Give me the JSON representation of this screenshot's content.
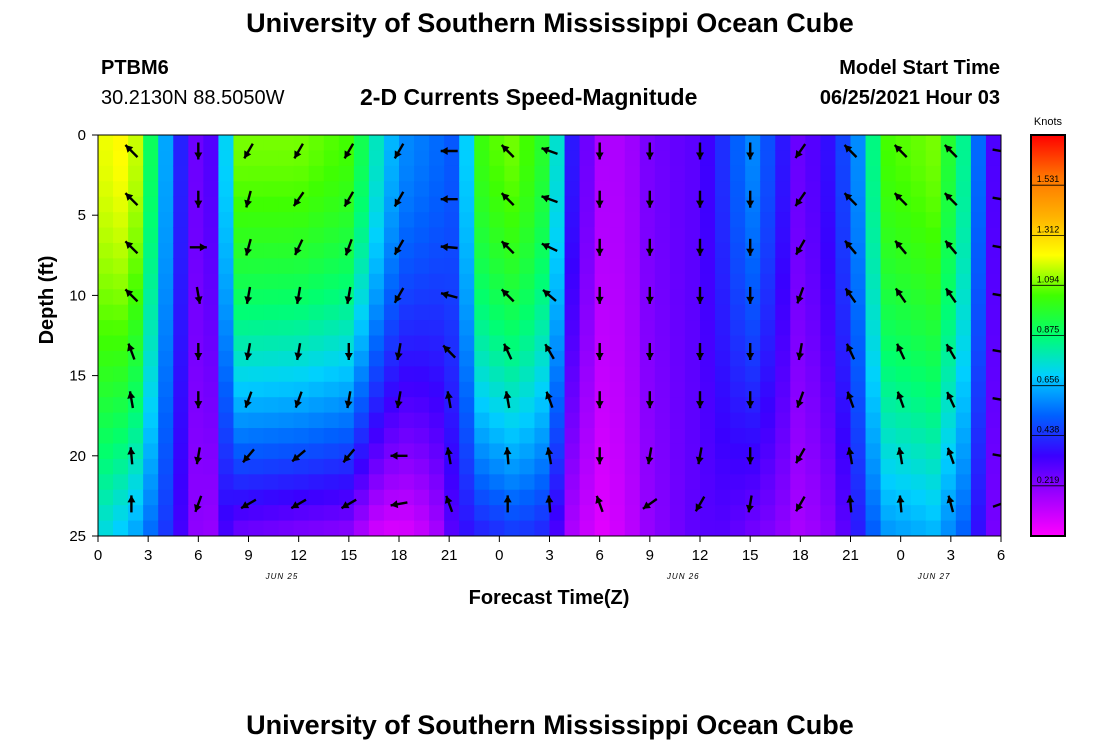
{
  "header": {
    "title": "University of Southern Mississippi Ocean Cube",
    "station_id": "PTBM6",
    "station_coords": "30.2130N  88.5050W",
    "chart_title": "2-D Currents Speed-Magnitude",
    "model_start_label": "Model Start Time",
    "model_start_value": "06/25/2021 Hour 03"
  },
  "footer": {
    "title": "University of Southern Mississippi Ocean Cube"
  },
  "chart_data": {
    "type": "heatmap",
    "title": "2-D Currents Speed-Magnitude",
    "xlabel": "Forecast Time(Z)",
    "ylabel": "Depth (ft)",
    "x_ticks": [
      "0",
      "3",
      "6",
      "9",
      "12",
      "15",
      "18",
      "21",
      "0",
      "3",
      "6",
      "9",
      "12",
      "15",
      "18",
      "21",
      "0",
      "3",
      "6"
    ],
    "x_tick_hours": [
      0,
      3,
      6,
      9,
      12,
      15,
      18,
      21,
      24,
      27,
      30,
      33,
      36,
      39,
      42,
      45,
      48,
      51,
      54
    ],
    "date_labels": [
      {
        "text": "JUN 25",
        "hour": 11
      },
      {
        "text": "JUN 26",
        "hour": 35
      },
      {
        "text": "JUN 27",
        "hour": 50
      }
    ],
    "y_ticks": [
      0,
      5,
      10,
      15,
      20,
      25
    ],
    "xlim": [
      0,
      54
    ],
    "ylim": [
      0,
      25
    ],
    "colorbar": {
      "unit": "Knots",
      "ticks": [
        "1.531",
        "1.312",
        "1.094",
        "0.875",
        "0.656",
        "0.438",
        "0.219"
      ],
      "tick_values": [
        1.531,
        1.312,
        1.094,
        0.875,
        0.656,
        0.438,
        0.219
      ],
      "range": [
        0,
        1.75
      ],
      "colors": [
        "#ff00ff",
        "#a000ff",
        "#3a00ff",
        "#0060ff",
        "#00d0ff",
        "#00ff70",
        "#40ff00",
        "#ffff00",
        "#ffb000",
        "#ff7000",
        "#ff0000"
      ]
    },
    "speed_profiles": [
      {
        "hour": 0,
        "surface": 1.2,
        "bottom": 0.75
      },
      {
        "hour": 2,
        "surface": 1.25,
        "bottom": 0.65
      },
      {
        "hour": 3.5,
        "surface": 0.8,
        "bottom": 0.5
      },
      {
        "hour": 4.5,
        "surface": 0.5,
        "bottom": 0.4
      },
      {
        "hour": 5.5,
        "surface": 0.3,
        "bottom": 0.25
      },
      {
        "hour": 6.5,
        "surface": 0.2,
        "bottom": 0.12
      },
      {
        "hour": 7.3,
        "surface": 0.55,
        "bottom": 0.35
      },
      {
        "hour": 8.5,
        "surface": 1.1,
        "bottom": 0.25
      },
      {
        "hour": 12,
        "surface": 1.1,
        "bottom": 0.22
      },
      {
        "hour": 15,
        "surface": 1.05,
        "bottom": 0.2
      },
      {
        "hour": 16.5,
        "surface": 0.8,
        "bottom": 0.08
      },
      {
        "hour": 18,
        "surface": 0.6,
        "bottom": 0.05
      },
      {
        "hour": 20,
        "surface": 0.55,
        "bottom": 0.12
      },
      {
        "hour": 21.5,
        "surface": 0.5,
        "bottom": 0.35
      },
      {
        "hour": 23,
        "surface": 1.05,
        "bottom": 0.4
      },
      {
        "hour": 25,
        "surface": 1.1,
        "bottom": 0.45
      },
      {
        "hour": 27,
        "surface": 0.95,
        "bottom": 0.4
      },
      {
        "hour": 28.3,
        "surface": 0.4,
        "bottom": 0.15
      },
      {
        "hour": 30,
        "surface": 0.15,
        "bottom": 0.05
      },
      {
        "hour": 31.5,
        "surface": 0.15,
        "bottom": 0.1
      },
      {
        "hour": 33,
        "surface": 0.25,
        "bottom": 0.2
      },
      {
        "hour": 36,
        "surface": 0.3,
        "bottom": 0.3
      },
      {
        "hour": 37.5,
        "surface": 0.45,
        "bottom": 0.3
      },
      {
        "hour": 39,
        "surface": 0.6,
        "bottom": 0.25
      },
      {
        "hour": 40.5,
        "surface": 0.45,
        "bottom": 0.22
      },
      {
        "hour": 42,
        "surface": 0.25,
        "bottom": 0.15
      },
      {
        "hour": 44,
        "surface": 0.4,
        "bottom": 0.22
      },
      {
        "hour": 45.5,
        "surface": 0.6,
        "bottom": 0.4
      },
      {
        "hour": 47,
        "surface": 1.05,
        "bottom": 0.6
      },
      {
        "hour": 50,
        "surface": 1.1,
        "bottom": 0.65
      },
      {
        "hour": 52,
        "surface": 0.8,
        "bottom": 0.5
      },
      {
        "hour": 53,
        "surface": 0.4,
        "bottom": 0.3
      },
      {
        "hour": 54,
        "surface": 0.25,
        "bottom": 0.2
      }
    ],
    "vectors": {
      "depths": [
        1,
        4,
        7,
        10,
        13.5,
        16.5,
        20,
        23
      ],
      "columns": [
        {
          "hour": 2,
          "angles": [
            135,
            135,
            135,
            135,
            110,
            100,
            95,
            90
          ]
        },
        {
          "hour": 6,
          "angles": [
            -90,
            -90,
            0,
            -80,
            -90,
            -90,
            -100,
            -110
          ]
        },
        {
          "hour": 9,
          "angles": [
            -120,
            -105,
            -105,
            -100,
            -100,
            -110,
            -130,
            -150
          ]
        },
        {
          "hour": 12,
          "angles": [
            -120,
            -125,
            -115,
            -100,
            -100,
            -110,
            -140,
            -150
          ]
        },
        {
          "hour": 15,
          "angles": [
            -120,
            -120,
            -110,
            -100,
            -90,
            -100,
            -130,
            -150
          ]
        },
        {
          "hour": 18,
          "angles": [
            -120,
            -120,
            -120,
            -120,
            -100,
            -100,
            -180,
            -170
          ]
        },
        {
          "hour": 21,
          "angles": [
            180,
            180,
            175,
            165,
            135,
            100,
            100,
            110
          ]
        },
        {
          "hour": 24.5,
          "angles": [
            135,
            135,
            135,
            135,
            115,
            100,
            95,
            90
          ]
        },
        {
          "hour": 27,
          "angles": [
            160,
            160,
            155,
            140,
            120,
            110,
            100,
            95
          ]
        },
        {
          "hour": 30,
          "angles": [
            -90,
            -90,
            -90,
            -90,
            -90,
            -90,
            -90,
            110
          ]
        },
        {
          "hour": 33,
          "angles": [
            -90,
            -90,
            -90,
            -90,
            -90,
            -90,
            -100,
            -145
          ]
        },
        {
          "hour": 36,
          "angles": [
            -90,
            -90,
            -90,
            -90,
            -90,
            -90,
            -100,
            -120
          ]
        },
        {
          "hour": 39,
          "angles": [
            -90,
            -90,
            -90,
            -90,
            -90,
            -90,
            -90,
            -100
          ]
        },
        {
          "hour": 42,
          "angles": [
            -125,
            -125,
            -120,
            -110,
            -100,
            -110,
            -120,
            -120
          ]
        },
        {
          "hour": 45,
          "angles": [
            135,
            135,
            130,
            125,
            115,
            110,
            100,
            95
          ]
        },
        {
          "hour": 48,
          "angles": [
            135,
            135,
            130,
            125,
            115,
            110,
            100,
            95
          ]
        },
        {
          "hour": 51,
          "angles": [
            135,
            135,
            130,
            125,
            120,
            115,
            110,
            105
          ]
        },
        {
          "hour": 54,
          "angles": [
            -10,
            -10,
            -10,
            -10,
            -10,
            -10,
            -10,
            20
          ]
        }
      ]
    }
  }
}
